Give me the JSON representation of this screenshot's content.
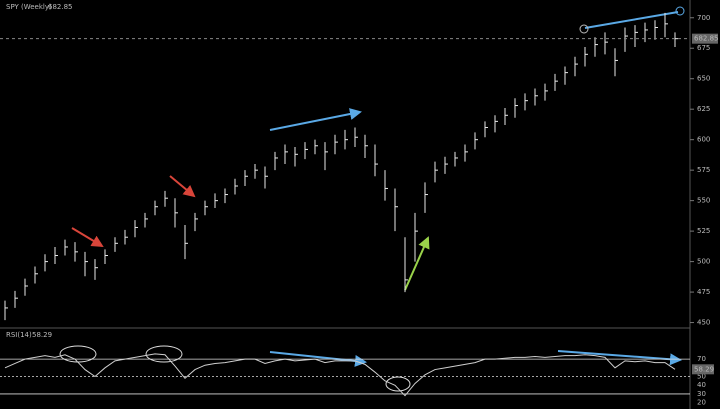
{
  "chart_data": [
    {
      "type": "ohlc",
      "title": "SPY (Weekly)",
      "high": [
        468,
        476,
        486,
        496,
        506,
        512,
        518,
        516,
        508,
        502,
        510,
        520,
        526,
        534,
        540,
        550,
        558,
        552,
        530,
        540,
        550,
        556,
        560,
        568,
        575,
        580,
        578,
        590,
        596,
        594,
        598,
        600,
        598,
        604,
        608,
        610,
        604,
        596,
        575,
        560,
        520,
        540,
        565,
        582,
        586,
        590,
        596,
        606,
        615,
        620,
        626,
        634,
        638,
        642,
        646,
        654,
        660,
        668,
        676,
        684,
        688,
        675,
        692,
        694,
        696,
        698,
        704,
        688
      ],
      "low": [
        452,
        462,
        472,
        482,
        492,
        498,
        505,
        500,
        488,
        485,
        498,
        508,
        514,
        520,
        528,
        538,
        545,
        528,
        502,
        525,
        538,
        544,
        548,
        555,
        562,
        568,
        560,
        575,
        580,
        578,
        584,
        588,
        575,
        588,
        592,
        594,
        585,
        570,
        550,
        525,
        475,
        500,
        540,
        565,
        572,
        578,
        582,
        592,
        602,
        606,
        612,
        618,
        624,
        628,
        632,
        640,
        645,
        652,
        660,
        668,
        670,
        652,
        672,
        676,
        680,
        682,
        684,
        676
      ],
      "close": [
        462,
        470,
        480,
        490,
        500,
        505,
        512,
        508,
        500,
        495,
        505,
        515,
        520,
        528,
        535,
        545,
        552,
        540,
        515,
        535,
        545,
        550,
        555,
        562,
        570,
        575,
        570,
        585,
        590,
        588,
        592,
        595,
        590,
        598,
        600,
        602,
        595,
        580,
        560,
        545,
        485,
        525,
        555,
        575,
        580,
        585,
        590,
        600,
        610,
        615,
        620,
        628,
        632,
        636,
        640,
        648,
        655,
        662,
        670,
        678,
        680,
        665,
        685,
        688,
        690,
        692,
        695,
        682.85
      ],
      "color": "#e8e8e8",
      "ylim": [
        448,
        708
      ],
      "yticks": [
        450,
        475,
        500,
        525,
        550,
        575,
        600,
        625,
        650,
        675,
        700
      ]
    },
    {
      "type": "line",
      "title": "RSI(14)",
      "values": [
        60,
        65,
        70,
        72,
        74,
        72,
        75,
        70,
        58,
        50,
        60,
        68,
        70,
        72,
        74,
        76,
        75,
        62,
        48,
        58,
        63,
        65,
        66,
        68,
        70,
        70,
        65,
        68,
        70,
        68,
        69,
        70,
        66,
        68,
        68,
        68,
        64,
        55,
        45,
        40,
        28,
        42,
        52,
        58,
        60,
        62,
        64,
        66,
        70,
        70,
        71,
        72,
        72,
        73,
        72,
        73,
        74,
        74,
        75,
        74,
        72,
        60,
        68,
        67,
        68,
        66,
        66,
        58.29
      ],
      "color": "#cfcfcf",
      "ylim": [
        15,
        100
      ],
      "yticks": [
        20,
        30,
        40,
        50,
        60,
        70
      ]
    }
  ]
}
